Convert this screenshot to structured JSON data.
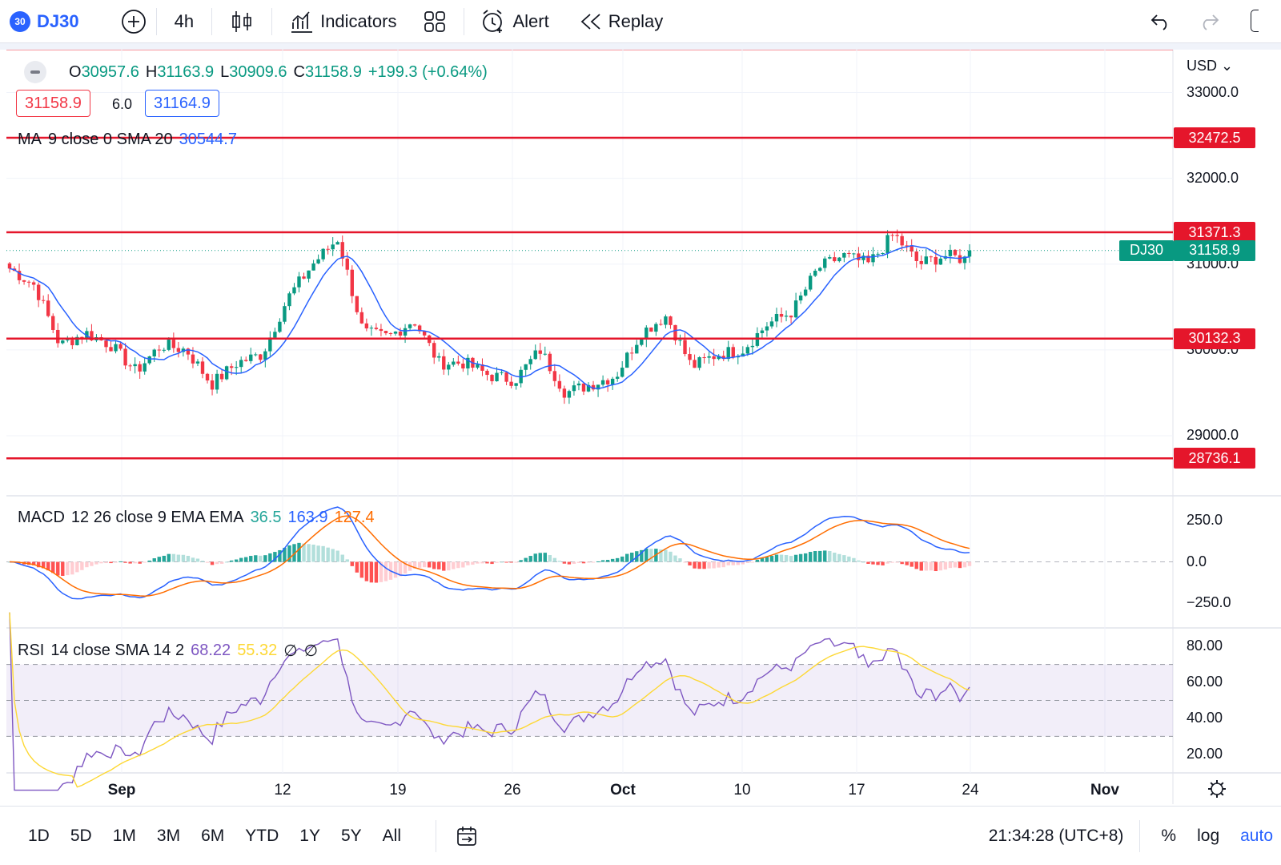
{
  "toolbar": {
    "symbol_badge": "30",
    "symbol": "DJ30",
    "interval": "4h",
    "indicators_label": "Indicators",
    "alert_label": "Alert",
    "replay_label": "Replay"
  },
  "legend": {
    "o_label": "O",
    "o_value": "30957.6",
    "h_label": "H",
    "h_value": "31163.9",
    "l_label": "L",
    "l_value": "30909.6",
    "c_label": "C",
    "c_value": "31158.9",
    "change": "+199.3 (+0.64%)",
    "sell_price": "31158.9",
    "spread": "6.0",
    "buy_price": "31164.9"
  },
  "ma_legend": {
    "name": "MA",
    "params": "9 close 0 SMA 20",
    "value": "30544.7"
  },
  "macd_legend": {
    "name": "MACD",
    "params": "12 26 close 9 EMA EMA",
    "hist_value": "36.5",
    "macd_value": "163.9",
    "signal_value": "127.4"
  },
  "rsi_legend": {
    "name": "RSI",
    "params": "14 close SMA 14 2",
    "rsi_value": "68.22",
    "sma_value": "55.32",
    "extra1": "∅",
    "extra2": "∅"
  },
  "price_axis": {
    "currency": "USD",
    "ticks": [
      "33000.0",
      "32000.0",
      "31000.0",
      "30000.0",
      "29000.0"
    ],
    "levels": [
      {
        "label": "32472.5",
        "value": 32472.5
      },
      {
        "label": "31371.3",
        "value": 31371.3
      },
      {
        "label": "30132.3",
        "value": 30132.3
      },
      {
        "label": "28736.1",
        "value": 28736.1
      }
    ],
    "last_symbol": "DJ30",
    "last_price": "31158.9",
    "last_value": 31158.9
  },
  "macd_axis": {
    "ticks": [
      "250.0",
      "0.0",
      "−250.0"
    ]
  },
  "rsi_axis": {
    "ticks": [
      "80.00",
      "60.00",
      "40.00",
      "20.00"
    ]
  },
  "time_axis": {
    "labels": [
      {
        "text": "Sep",
        "bold": true
      },
      {
        "text": "12",
        "bold": false
      },
      {
        "text": "19",
        "bold": false
      },
      {
        "text": "26",
        "bold": false
      },
      {
        "text": "Oct",
        "bold": true
      },
      {
        "text": "10",
        "bold": false
      },
      {
        "text": "17",
        "bold": false
      },
      {
        "text": "24",
        "bold": false
      },
      {
        "text": "Nov",
        "bold": true
      }
    ]
  },
  "bottombar": {
    "ranges": [
      "1D",
      "5D",
      "1M",
      "3M",
      "6M",
      "YTD",
      "1Y",
      "5Y",
      "All"
    ],
    "time": "21:34:28 (UTC+8)",
    "percent": "%",
    "log": "log",
    "auto": "auto"
  },
  "colors": {
    "up": "#089981",
    "down": "#f23645",
    "level_line": "#e5162b",
    "ma_line": "#2962ff",
    "macd_line": "#2962ff",
    "signal_line": "#ff6d00",
    "rsi_line": "#7e57c2",
    "rsi_sma": "#fdd835"
  },
  "chart_data": {
    "type": "candlestick",
    "interval": "4h",
    "price_ylim": [
      28300,
      33500
    ],
    "price_path": [
      [
        0,
        30950
      ],
      [
        1,
        30750
      ],
      [
        2,
        30050
      ],
      [
        3,
        30200
      ],
      [
        4,
        30060
      ],
      [
        5,
        29750
      ],
      [
        6,
        30060
      ],
      [
        7,
        30000
      ],
      [
        8,
        29600
      ],
      [
        9,
        29850
      ],
      [
        10,
        29950
      ],
      [
        11,
        30600
      ],
      [
        12,
        31000
      ],
      [
        13,
        31300
      ],
      [
        14,
        30200
      ],
      [
        15,
        30150
      ],
      [
        16,
        30350
      ],
      [
        17,
        29850
      ],
      [
        18,
        29850
      ],
      [
        19,
        29700
      ],
      [
        20,
        29650
      ],
      [
        21,
        30000
      ],
      [
        22,
        29500
      ],
      [
        23,
        29600
      ],
      [
        24,
        29700
      ],
      [
        25,
        30200
      ],
      [
        26,
        30400
      ],
      [
        27,
        29800
      ],
      [
        28,
        29950
      ],
      [
        29,
        30000
      ],
      [
        30,
        30300
      ],
      [
        31,
        30450
      ],
      [
        32,
        30950
      ],
      [
        33,
        31100
      ],
      [
        34,
        31000
      ],
      [
        35,
        31350
      ],
      [
        36,
        31000
      ],
      [
        37,
        31100
      ],
      [
        38,
        31050
      ]
    ]
  }
}
